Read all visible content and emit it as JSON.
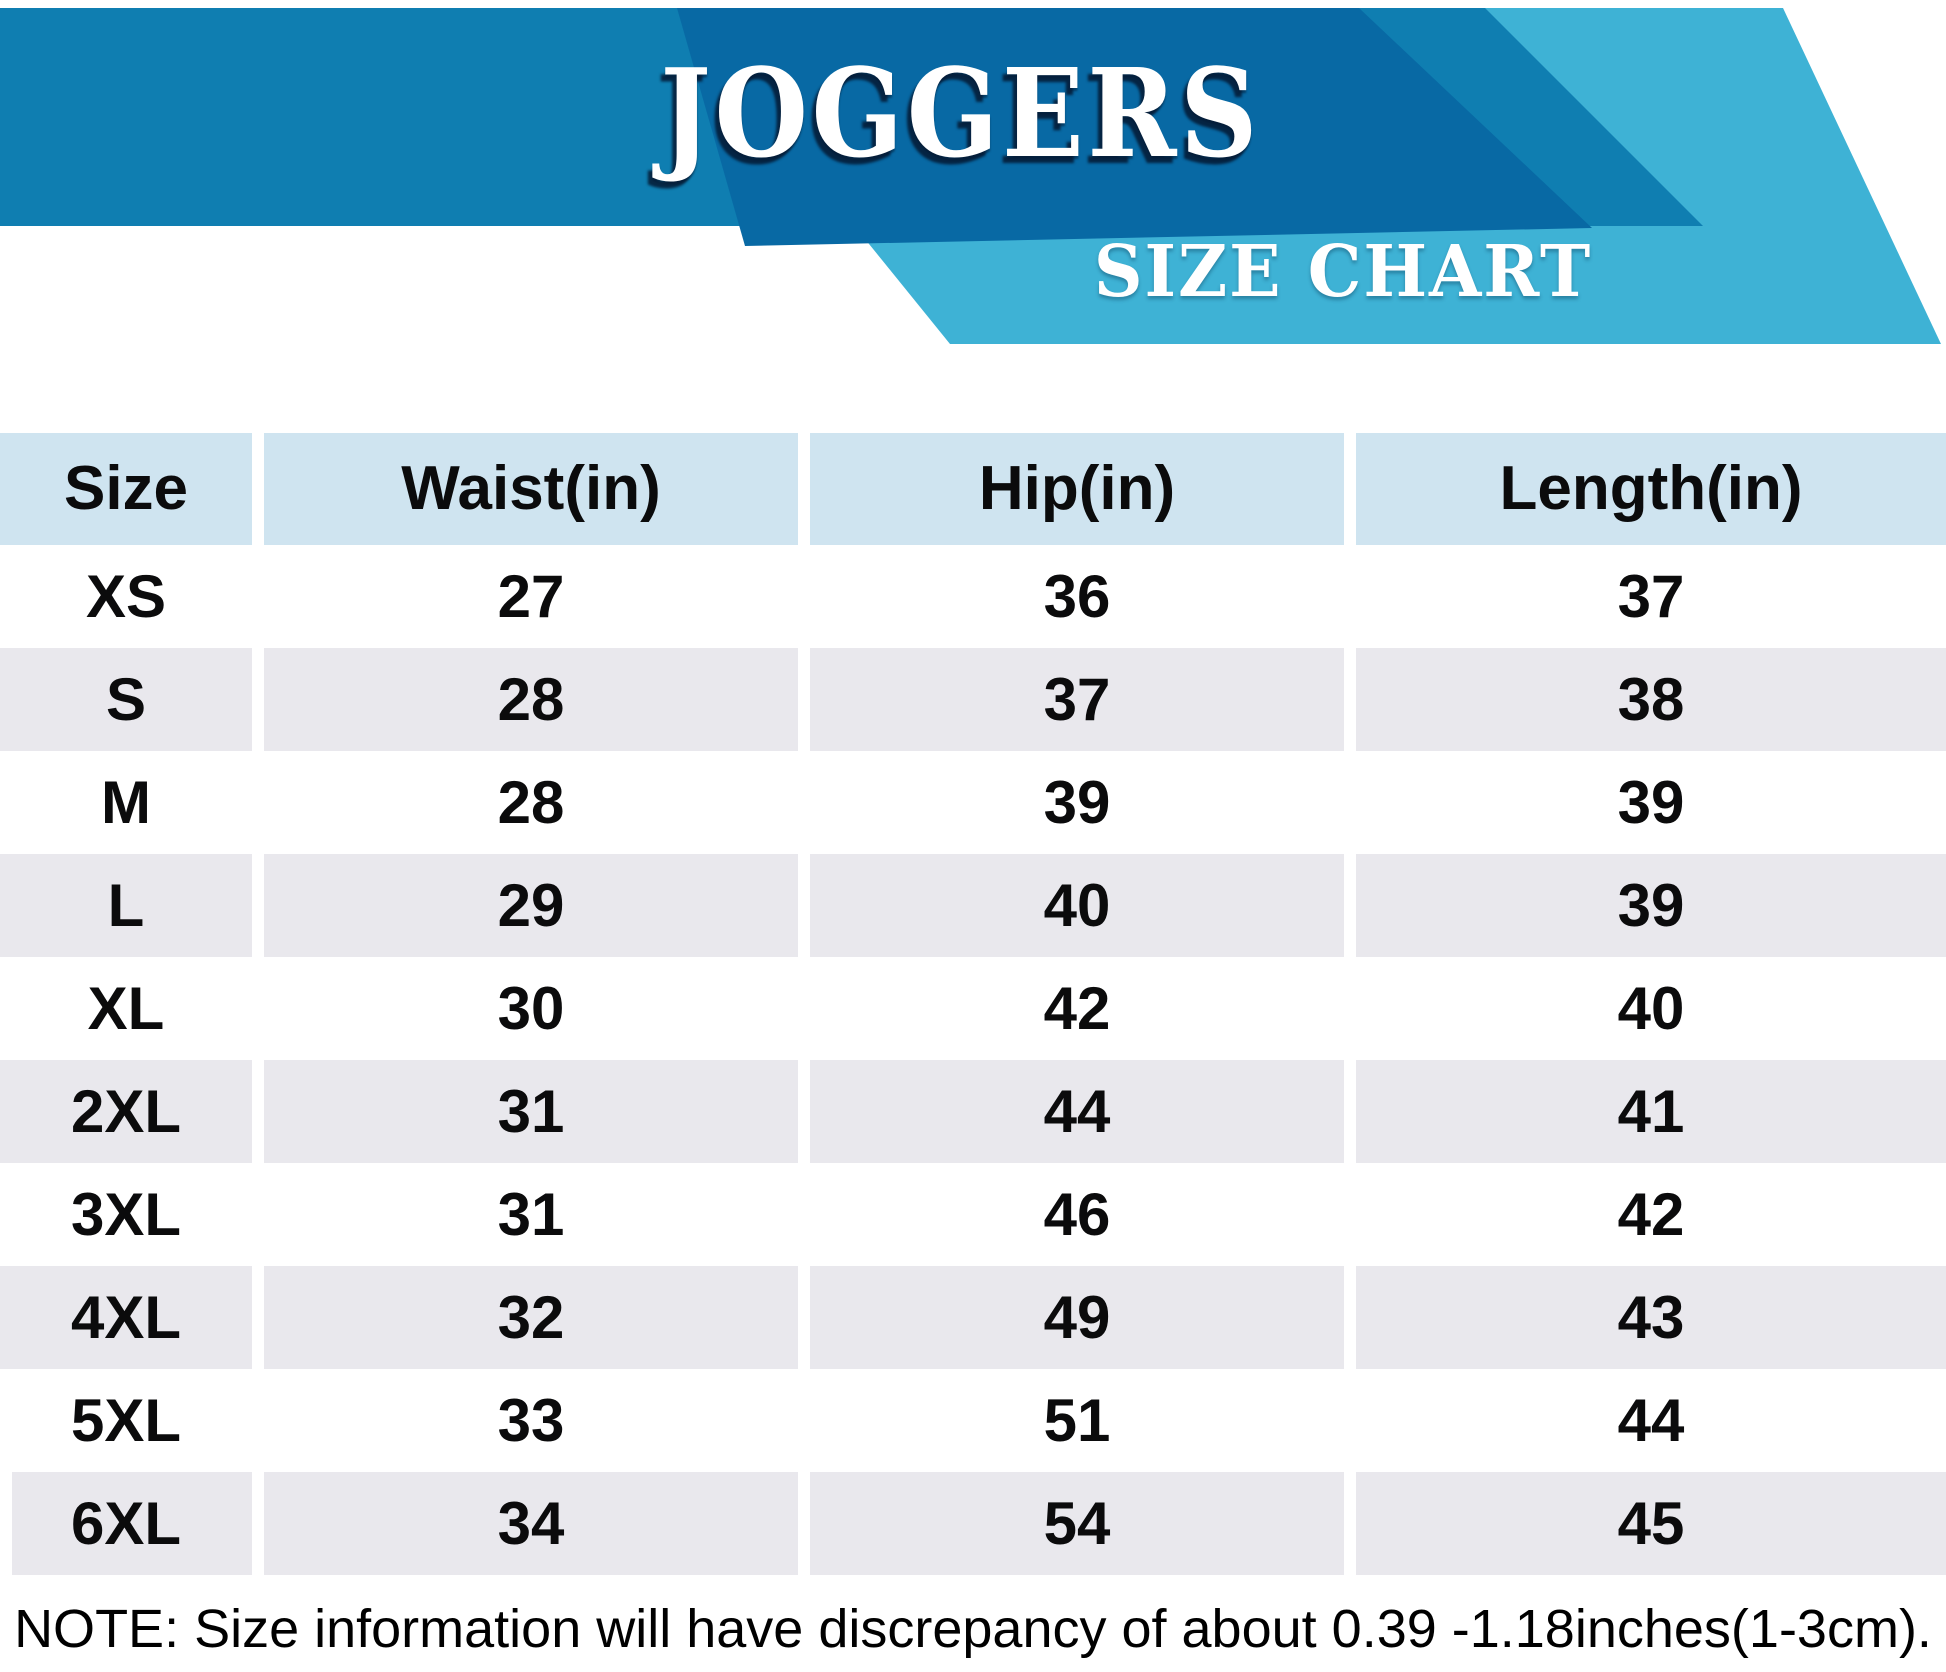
{
  "title": "JOGGERS",
  "subtitle": "SIZE CHART",
  "table": {
    "headers": [
      "Size",
      "Waist(in)",
      "Hip(in)",
      "Length(in)"
    ],
    "rows": [
      {
        "size": "XS",
        "waist": "27",
        "hip": "36",
        "length": "37"
      },
      {
        "size": "S",
        "waist": "28",
        "hip": "37",
        "length": "38"
      },
      {
        "size": "M",
        "waist": "28",
        "hip": "39",
        "length": "39"
      },
      {
        "size": "L",
        "waist": "29",
        "hip": "40",
        "length": "39"
      },
      {
        "size": "XL",
        "waist": "30",
        "hip": "42",
        "length": "40"
      },
      {
        "size": "2XL",
        "waist": "31",
        "hip": "44",
        "length": "41"
      },
      {
        "size": "3XL",
        "waist": "31",
        "hip": "46",
        "length": "42"
      },
      {
        "size": "4XL",
        "waist": "32",
        "hip": "49",
        "length": "43"
      },
      {
        "size": "5XL",
        "waist": "33",
        "hip": "51",
        "length": "44"
      },
      {
        "size": "6XL",
        "waist": "34",
        "hip": "54",
        "length": "45"
      }
    ]
  },
  "note": "NOTE: Size information will have discrepancy of about 0.39 -1.18inches(1-3cm).",
  "colors": {
    "banner_blue": "#0f7eb1",
    "dark_blue": "#0869a4",
    "teal": "#3eb2d5",
    "header_row_bg": "#cfe4f0",
    "alt_row_bg": "#e9e8ed",
    "text": "#0b0b0c"
  }
}
